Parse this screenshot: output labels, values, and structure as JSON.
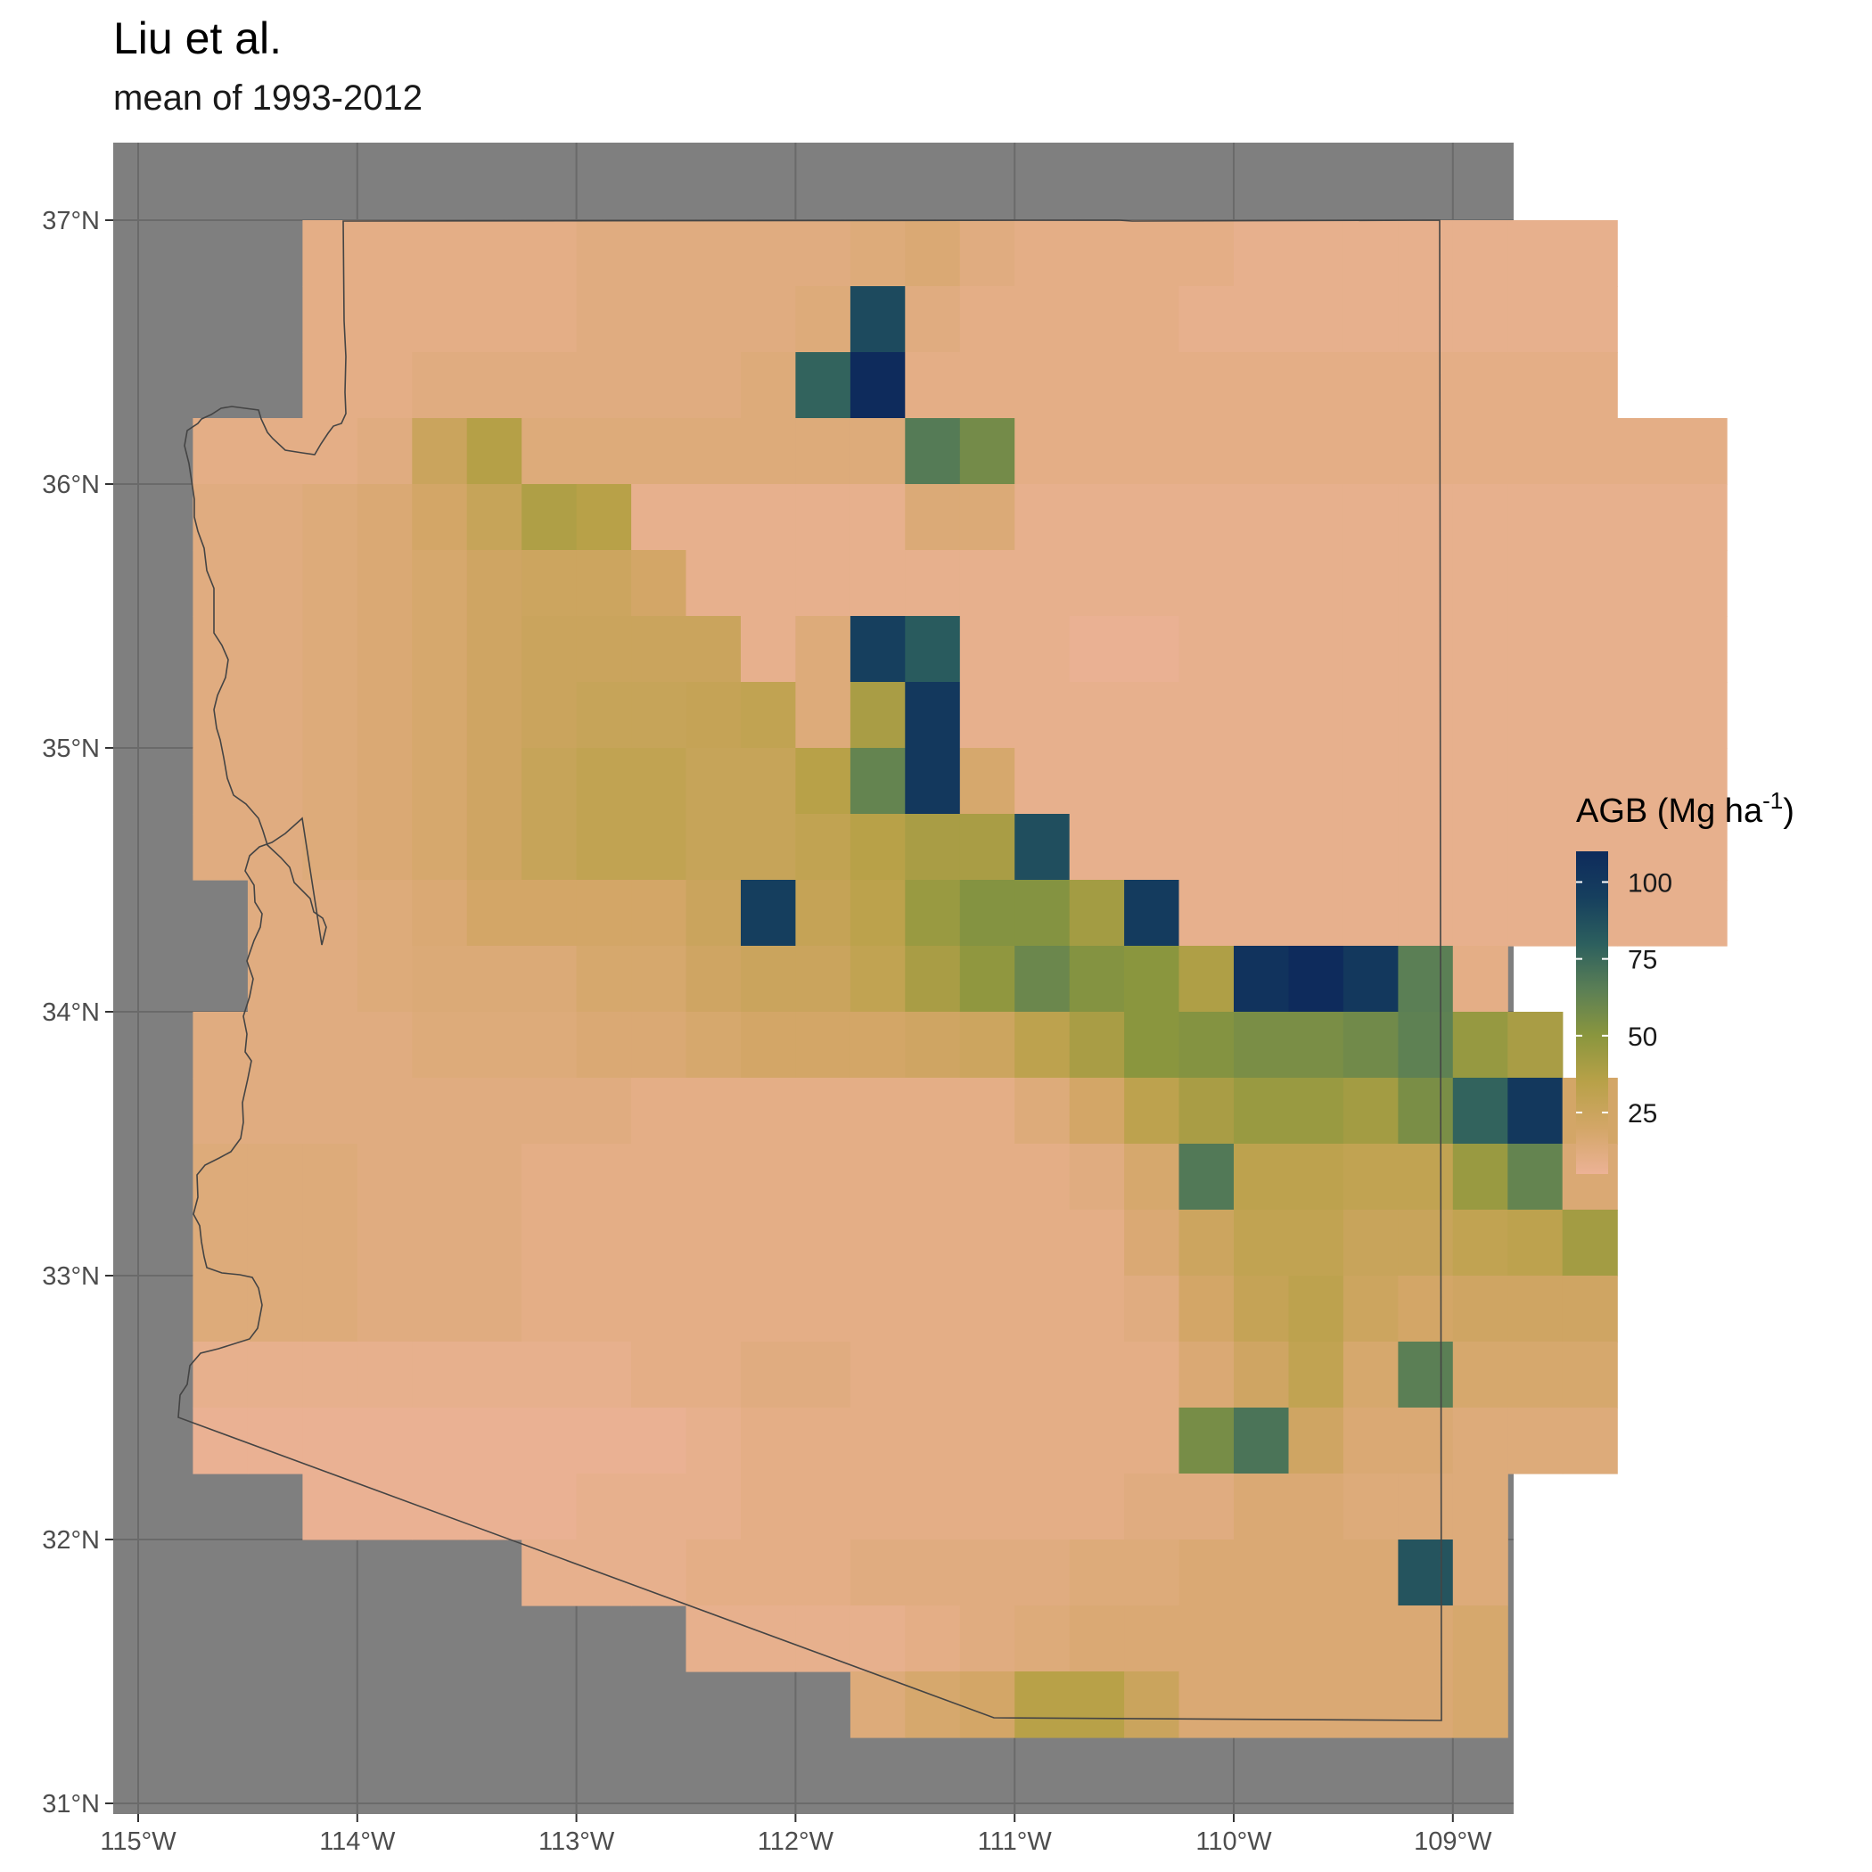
{
  "title": "Liu et al.",
  "subtitle": "mean of 1993-2012",
  "chart_data": {
    "type": "heatmap",
    "title": "Liu et al.",
    "subtitle": "mean of 1993-2012",
    "x_ticks": [
      {
        "value": -115,
        "label": "115°W"
      },
      {
        "value": -114,
        "label": "114°W"
      },
      {
        "value": -113,
        "label": "113°W"
      },
      {
        "value": -112,
        "label": "112°W"
      },
      {
        "value": -111,
        "label": "111°W"
      },
      {
        "value": -110,
        "label": "110°W"
      },
      {
        "value": -109,
        "label": "109°W"
      }
    ],
    "y_ticks": [
      {
        "value": 31,
        "label": "31°N"
      },
      {
        "value": 32,
        "label": "32°N"
      },
      {
        "value": 33,
        "label": "33°N"
      },
      {
        "value": 34,
        "label": "34°N"
      },
      {
        "value": 35,
        "label": "35°N"
      },
      {
        "value": 36,
        "label": "36°N"
      },
      {
        "value": 37,
        "label": "37°N"
      }
    ],
    "xlim": [
      -115.1,
      -108.7
    ],
    "ylim": [
      30.95,
      37.3
    ],
    "cell_size_deg": 0.25,
    "grid": true,
    "panel_background": "#7f7f7f",
    "legend": {
      "title": "AGB (Mg ha",
      "title_superscript": "-1",
      "title_suffix": ")",
      "placement": "right",
      "range": [
        5,
        110
      ],
      "ticks": [
        {
          "value": 100,
          "label": "100"
        },
        {
          "value": 75,
          "label": "75"
        },
        {
          "value": 50,
          "label": "50"
        },
        {
          "value": 25,
          "label": "25"
        }
      ],
      "colors": [
        "#ecb296",
        "#d3a667",
        "#b8a148",
        "#8a963e",
        "#5b7f55",
        "#2c5f5e",
        "#163f5e",
        "#0e2b5c"
      ]
    },
    "rows_lat_top": [
      37.0,
      36.75,
      36.5,
      36.25,
      36.0,
      35.75,
      35.5,
      35.25,
      35.0,
      34.75,
      34.5,
      34.25,
      34.0,
      33.75,
      33.5,
      33.25,
      33.0,
      32.75,
      32.5,
      32.25,
      32.0,
      31.75,
      31.5
    ],
    "rows": [
      {
        "lon0": -114.25,
        "v": [
          10,
          10,
          10,
          10,
          10,
          12,
          12,
          12,
          12,
          12,
          14,
          16,
          12,
          10,
          10,
          10,
          10,
          8,
          8,
          8,
          8,
          8,
          8,
          8
        ]
      },
      {
        "lon0": -114.25,
        "v": [
          10,
          10,
          10,
          10,
          10,
          12,
          12,
          12,
          12,
          14,
          90,
          12,
          10,
          10,
          10,
          10,
          8,
          8,
          8,
          8,
          8,
          8,
          8,
          8
        ]
      },
      {
        "lon0": -114.25,
        "v": [
          10,
          10,
          12,
          12,
          12,
          12,
          12,
          12,
          14,
          78,
          110,
          10,
          10,
          10,
          10,
          10,
          10,
          10,
          10,
          10,
          10,
          10,
          10,
          10
        ]
      },
      {
        "lon0": -114.75,
        "v": [
          10,
          10,
          10,
          12,
          25,
          36,
          14,
          14,
          14,
          14,
          14,
          14,
          14,
          67,
          57,
          10,
          10,
          10,
          10,
          10,
          10,
          10,
          10,
          10,
          10,
          10,
          10,
          10
        ]
      },
      {
        "lon0": -114.75,
        "v": [
          12,
          12,
          14,
          16,
          20,
          27,
          38,
          35,
          8,
          8,
          8,
          8,
          8,
          15,
          15,
          8,
          8,
          8,
          8,
          8,
          8,
          8,
          8,
          8,
          8,
          8,
          8,
          8
        ]
      },
      {
        "lon0": -114.75,
        "v": [
          12,
          12,
          14,
          16,
          18,
          22,
          24,
          24,
          20,
          8,
          8,
          8,
          8,
          8,
          8,
          8,
          8,
          8,
          8,
          8,
          8,
          8,
          8,
          8,
          8,
          8,
          8,
          8
        ]
      },
      {
        "lon0": -114.75,
        "v": [
          12,
          12,
          14,
          16,
          18,
          22,
          25,
          25,
          25,
          25,
          8,
          14,
          95,
          82,
          8,
          8,
          6,
          6,
          8,
          8,
          8,
          8,
          8,
          8,
          8,
          8,
          8,
          8
        ]
      },
      {
        "lon0": -114.75,
        "v": [
          12,
          12,
          14,
          16,
          18,
          22,
          25,
          27,
          27,
          28,
          30,
          14,
          40,
          100,
          8,
          8,
          8,
          8,
          8,
          8,
          8,
          8,
          8,
          8,
          8,
          8,
          8,
          8
        ]
      },
      {
        "lon0": -114.75,
        "v": [
          12,
          12,
          14,
          16,
          18,
          22,
          27,
          30,
          30,
          27,
          27,
          35,
          62,
          100,
          18,
          8,
          8,
          8,
          8,
          8,
          8,
          8,
          8,
          8,
          8,
          8,
          8,
          8
        ]
      },
      {
        "lon0": -114.75,
        "v": [
          12,
          12,
          14,
          16,
          18,
          22,
          27,
          30,
          30,
          27,
          27,
          30,
          35,
          40,
          40,
          88,
          8,
          8,
          8,
          8,
          8,
          8,
          8,
          8,
          8,
          8,
          8,
          8
        ]
      },
      {
        "lon0": -114.5,
        "v": [
          12,
          12,
          14,
          16,
          20,
          20,
          20,
          20,
          25,
          96,
          28,
          33,
          45,
          52,
          52,
          42,
          98,
          8,
          8,
          8,
          8,
          8,
          8,
          8,
          8,
          8,
          8
        ]
      },
      {
        "lon0": -114.5,
        "v": [
          12,
          12,
          14,
          15,
          15,
          15,
          18,
          18,
          22,
          25,
          25,
          30,
          40,
          48,
          60,
          52,
          50,
          38,
          104,
          110,
          100,
          65,
          10
        ]
      },
      {
        "lon0": -114.75,
        "v": [
          12,
          12,
          12,
          12,
          14,
          14,
          14,
          16,
          16,
          18,
          20,
          20,
          20,
          22,
          24,
          32,
          40,
          50,
          52,
          55,
          55,
          58,
          64,
          46,
          40
        ]
      },
      {
        "lon0": -114.75,
        "v": [
          12,
          12,
          12,
          12,
          12,
          12,
          12,
          12,
          10,
          10,
          10,
          10,
          10,
          10,
          10,
          14,
          20,
          32,
          40,
          45,
          45,
          42,
          55,
          78,
          100,
          20
        ]
      },
      {
        "lon0": -114.75,
        "v": [
          14,
          14,
          14,
          12,
          12,
          12,
          10,
          10,
          10,
          10,
          10,
          10,
          10,
          10,
          10,
          10,
          12,
          18,
          68,
          32,
          32,
          30,
          30,
          45,
          62,
          16
        ]
      },
      {
        "lon0": -114.75,
        "v": [
          14,
          14,
          14,
          12,
          12,
          12,
          10,
          10,
          10,
          10,
          10,
          10,
          10,
          10,
          10,
          10,
          10,
          16,
          24,
          30,
          30,
          26,
          26,
          30,
          32,
          42
        ]
      },
      {
        "lon0": -114.75,
        "v": [
          14,
          14,
          14,
          12,
          12,
          12,
          10,
          10,
          10,
          10,
          10,
          10,
          10,
          10,
          10,
          10,
          10,
          12,
          20,
          28,
          32,
          24,
          20,
          22,
          22,
          22
        ]
      },
      {
        "lon0": -114.75,
        "v": [
          8,
          8,
          8,
          8,
          8,
          8,
          8,
          8,
          10,
          10,
          12,
          12,
          10,
          10,
          10,
          10,
          10,
          10,
          16,
          22,
          30,
          18,
          65,
          18,
          18,
          18
        ]
      },
      {
        "lon0": -114.75,
        "v": [
          6,
          6,
          6,
          6,
          6,
          6,
          6,
          6,
          6,
          8,
          10,
          10,
          10,
          10,
          10,
          10,
          10,
          10,
          56,
          70,
          22,
          16,
          16,
          14,
          14,
          14
        ]
      },
      {
        "lon0": -114.25,
        "v": [
          6,
          6,
          6,
          6,
          6,
          8,
          8,
          8,
          10,
          10,
          10,
          10,
          10,
          10,
          10,
          12,
          12,
          16,
          16,
          14,
          14,
          14
        ]
      },
      {
        "lon0": -113.25,
        "v": [
          8,
          8,
          8,
          10,
          10,
          10,
          12,
          12,
          12,
          12,
          14,
          14,
          16,
          16,
          16,
          16,
          85,
          14
        ]
      },
      {
        "lon0": -112.5,
        "v": [
          8,
          8,
          8,
          8,
          10,
          12,
          14,
          16,
          16,
          16,
          16,
          16,
          16,
          16,
          18
        ]
      },
      {
        "lon0": -111.75,
        "v": [
          14,
          18,
          20,
          35,
          35,
          25,
          16,
          16,
          16,
          16,
          16,
          18
        ]
      }
    ]
  }
}
